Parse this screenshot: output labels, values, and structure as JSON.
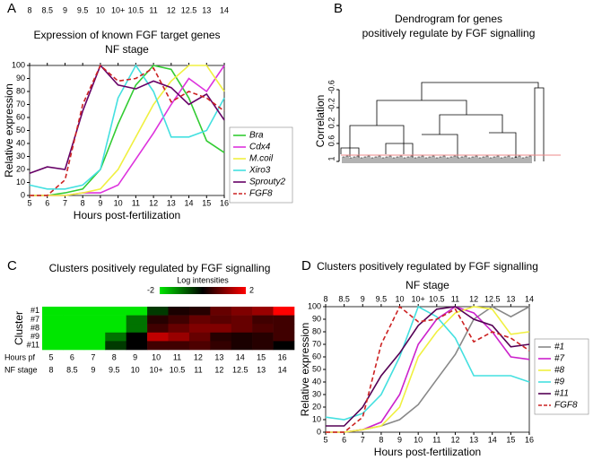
{
  "chart_data": [
    {
      "type": "line",
      "panel": "A",
      "title": "Expression of known FGF target genes",
      "x2label": "NF stage",
      "xlabel": "Hours post-fertilization",
      "ylabel": "Relative expression",
      "x": [
        5,
        6,
        7,
        8,
        9,
        10,
        11,
        12,
        13,
        14,
        15,
        16
      ],
      "xlim": [
        5,
        16
      ],
      "xticks": [
        5,
        6,
        7,
        8,
        9,
        10,
        11,
        12,
        13,
        14,
        15,
        16
      ],
      "x2ticks": [
        {
          "value": 5,
          "label": "8"
        },
        {
          "value": 6,
          "label": "8.5"
        },
        {
          "value": 7,
          "label": "9"
        },
        {
          "value": 8,
          "label": "9.5"
        },
        {
          "value": 9,
          "label": "10"
        },
        {
          "value": 10,
          "label": "10+"
        },
        {
          "value": 11,
          "label": "10.5"
        },
        {
          "value": 12,
          "label": "11"
        },
        {
          "value": 13,
          "label": "12"
        },
        {
          "value": 14,
          "label": "12.5"
        },
        {
          "value": 15,
          "label": "13"
        },
        {
          "value": 16,
          "label": "14"
        }
      ],
      "ylim": [
        0,
        100
      ],
      "yticks": [
        0,
        10,
        20,
        30,
        40,
        50,
        60,
        70,
        80,
        90,
        100
      ],
      "series": [
        {
          "name": "Bra",
          "color": "#33cc33",
          "values": [
            0,
            0,
            2,
            5,
            20,
            55,
            85,
            100,
            97,
            75,
            42,
            33
          ]
        },
        {
          "name": "Cdx4",
          "color": "#dd33dd",
          "values": [
            0,
            0,
            0,
            2,
            2,
            8,
            28,
            48,
            70,
            90,
            80,
            100
          ]
        },
        {
          "name": "M.coil",
          "color": "#f0f040",
          "values": [
            0,
            0,
            0,
            2,
            5,
            20,
            45,
            70,
            88,
            100,
            100,
            80
          ]
        },
        {
          "name": "Xiro3",
          "color": "#44e0e0",
          "values": [
            8,
            5,
            5,
            8,
            20,
            75,
            100,
            80,
            45,
            45,
            50,
            75
          ]
        },
        {
          "name": "Sprouty2",
          "color": "#660066",
          "values": [
            17,
            22,
            20,
            65,
            100,
            85,
            82,
            88,
            83,
            70,
            78,
            58
          ]
        },
        {
          "name": "FGF8",
          "color": "#cc2222",
          "dashed": true,
          "values": [
            0,
            0,
            12,
            70,
            100,
            88,
            90,
            98,
            72,
            80,
            75,
            65
          ]
        }
      ]
    },
    {
      "type": "dendrogram",
      "panel": "B",
      "title": [
        "Dendrogram for genes",
        "positively regulate by FGF signalling"
      ],
      "ylabel": "Correlation",
      "ylim": [
        1,
        -0.8
      ],
      "yticks": [
        -0.6,
        -0.2,
        0.2,
        0.6,
        1
      ]
    },
    {
      "type": "heatmap",
      "panel": "C",
      "title": "Clusters positively regulated by FGF signalling",
      "colorbar_label": "Log intensities",
      "clim": [
        -2,
        2
      ],
      "cticks": [
        -2,
        2
      ],
      "row_label": "Cluster",
      "rows": [
        "#1",
        "#7",
        "#8",
        "#9",
        "#11"
      ],
      "hours_label": "Hours pf",
      "hours": [
        5,
        6,
        7,
        8,
        9,
        10,
        11,
        12,
        13,
        14,
        15,
        16
      ],
      "nf_label": "NF stage",
      "nf_stage": [
        "8",
        "8.5",
        "9",
        "9.5",
        "10",
        "10+",
        "10.5",
        "11",
        "12",
        "12.5",
        "13",
        "14"
      ],
      "values": [
        [
          -2,
          -2,
          -2,
          -2,
          -2,
          -0.5,
          0.2,
          0.3,
          0.8,
          1,
          1.2,
          2
        ],
        [
          -2,
          -2,
          -2,
          -2,
          -1,
          0.3,
          0.5,
          0.8,
          0.7,
          0.8,
          0.5,
          0.5
        ],
        [
          -2,
          -2,
          -2,
          -2,
          -1,
          0.5,
          0.8,
          1,
          1,
          0.8,
          0.6,
          0.5
        ],
        [
          -2,
          -2,
          -2,
          -1,
          0,
          1.5,
          1.2,
          0.8,
          0.3,
          0.2,
          0.3,
          0.5
        ],
        [
          -2,
          -2,
          -2,
          -0.5,
          0,
          0.5,
          0.5,
          0.6,
          0.4,
          0.2,
          0.3,
          0
        ]
      ]
    },
    {
      "type": "line",
      "panel": "D",
      "title": "Clusters positively regulated by FGF signalling",
      "x2label": "NF stage",
      "xlabel": "Hours post-fertilization",
      "ylabel": "Relative expression",
      "x": [
        5,
        6,
        7,
        8,
        9,
        10,
        11,
        12,
        13,
        14,
        15,
        16
      ],
      "xlim": [
        5,
        16
      ],
      "xticks": [
        5,
        6,
        7,
        8,
        9,
        10,
        11,
        12,
        13,
        14,
        15,
        16
      ],
      "x2ticks": [
        {
          "value": 5,
          "label": "8"
        },
        {
          "value": 6,
          "label": "8.5"
        },
        {
          "value": 7,
          "label": "9"
        },
        {
          "value": 8,
          "label": "9.5"
        },
        {
          "value": 9,
          "label": "10"
        },
        {
          "value": 10,
          "label": "10+"
        },
        {
          "value": 11,
          "label": "10.5"
        },
        {
          "value": 12,
          "label": "11"
        },
        {
          "value": 13,
          "label": "12"
        },
        {
          "value": 14,
          "label": "12.5"
        },
        {
          "value": 15,
          "label": "13"
        },
        {
          "value": 16,
          "label": "14"
        }
      ],
      "ylim": [
        0,
        100
      ],
      "yticks": [
        0,
        10,
        20,
        30,
        40,
        50,
        60,
        70,
        80,
        90,
        100
      ],
      "series": [
        {
          "name": "#1",
          "color": "#888888",
          "values": [
            0,
            0,
            2,
            5,
            10,
            22,
            42,
            62,
            90,
            100,
            92,
            100
          ]
        },
        {
          "name": "#7",
          "color": "#cc22cc",
          "values": [
            0,
            0,
            2,
            8,
            30,
            70,
            90,
            100,
            95,
            80,
            60,
            58
          ]
        },
        {
          "name": "#8",
          "color": "#f0f040",
          "values": [
            0,
            0,
            2,
            5,
            20,
            60,
            80,
            95,
            100,
            98,
            78,
            80
          ]
        },
        {
          "name": "#9",
          "color": "#44e0e0",
          "values": [
            12,
            10,
            15,
            30,
            60,
            100,
            92,
            75,
            45,
            45,
            45,
            40
          ]
        },
        {
          "name": "#11",
          "color": "#550055",
          "values": [
            5,
            5,
            20,
            45,
            63,
            85,
            98,
            100,
            90,
            85,
            68,
            70
          ]
        },
        {
          "name": "FGF8",
          "color": "#cc2222",
          "dashed": true,
          "values": [
            0,
            0,
            12,
            70,
            100,
            88,
            90,
            98,
            72,
            80,
            75,
            65
          ]
        }
      ]
    }
  ]
}
